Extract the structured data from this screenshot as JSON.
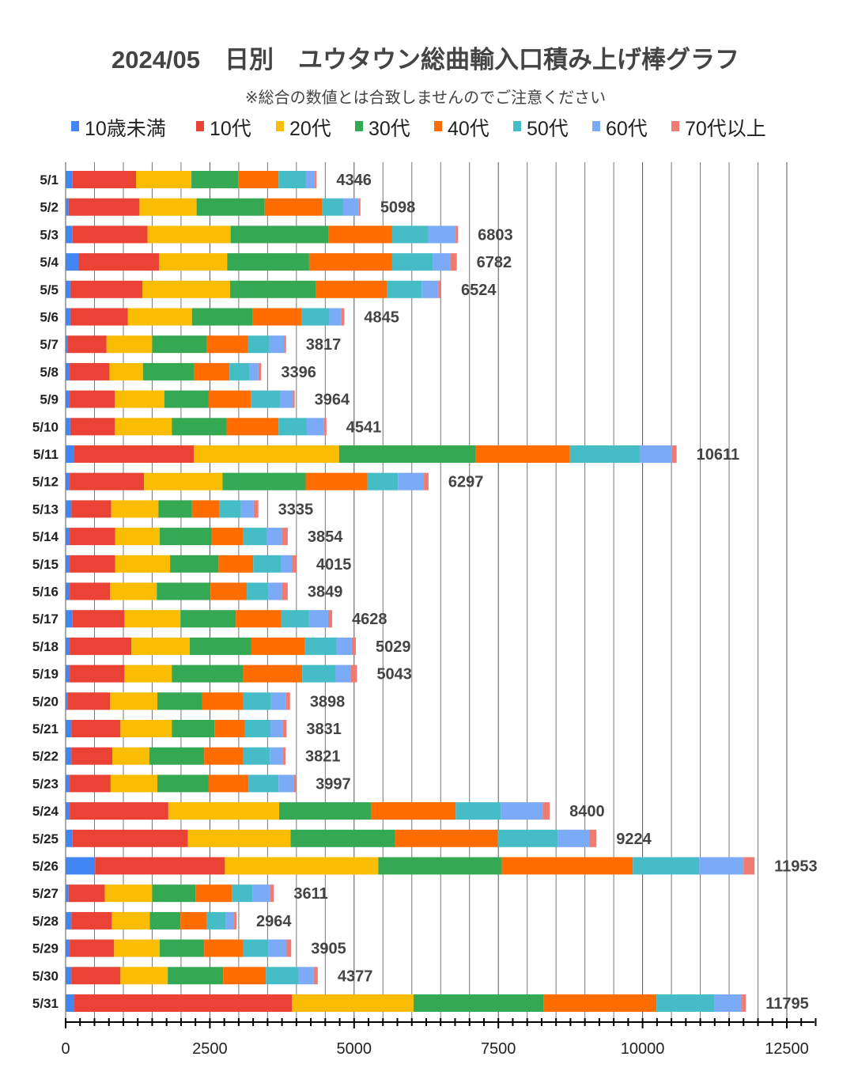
{
  "chart_data": {
    "type": "bar",
    "orientation": "horizontal",
    "stacked": true,
    "title": "2024/05　日別　ユウタウン総曲輸入口積み上げ棒グラフ",
    "subtitle": "※総合の数値とは合致しませんのでご注意ください",
    "xlabel": "",
    "ylabel": "",
    "xlim": [
      0,
      12500
    ],
    "xticks": [
      0,
      2500,
      5000,
      7500,
      10000,
      12500
    ],
    "grid": true,
    "legend_position": "top",
    "categories": [
      "5/1",
      "5/2",
      "5/3",
      "5/4",
      "5/5",
      "5/6",
      "5/7",
      "5/8",
      "5/9",
      "5/10",
      "5/11",
      "5/12",
      "5/13",
      "5/14",
      "5/15",
      "5/16",
      "5/17",
      "5/18",
      "5/19",
      "5/20",
      "5/21",
      "5/22",
      "5/23",
      "5/24",
      "5/25",
      "5/26",
      "5/27",
      "5/28",
      "5/29",
      "5/30",
      "5/31"
    ],
    "totals": [
      4346,
      5098,
      6803,
      6782,
      6524,
      4845,
      3817,
      3396,
      3964,
      4541,
      10611,
      6297,
      3335,
      3854,
      4015,
      3849,
      4628,
      5029,
      5043,
      3898,
      3831,
      3821,
      3997,
      8400,
      9224,
      11953,
      3611,
      2964,
      3905,
      4377,
      11795
    ],
    "series": [
      {
        "name": "10歳未満",
        "color": "#4285f4",
        "values": [
          120,
          50,
          120,
          220,
          80,
          80,
          40,
          70,
          70,
          80,
          150,
          70,
          100,
          70,
          70,
          70,
          120,
          70,
          70,
          40,
          100,
          100,
          70,
          70,
          120,
          510,
          50,
          100,
          70,
          100,
          150
        ]
      },
      {
        "name": "10代",
        "color": "#ea4335",
        "values": [
          1100,
          1230,
          1300,
          1400,
          1250,
          1000,
          670,
          690,
          780,
          770,
          2070,
          1290,
          690,
          790,
          790,
          700,
          900,
          1070,
          950,
          730,
          850,
          710,
          710,
          1710,
          2000,
          2250,
          630,
          700,
          770,
          850,
          3770
        ]
      },
      {
        "name": "20代",
        "color": "#fbbc04",
        "values": [
          960,
          990,
          1440,
          1180,
          1520,
          1110,
          790,
          580,
          860,
          990,
          2520,
          1360,
          820,
          770,
          950,
          810,
          970,
          1010,
          820,
          820,
          890,
          640,
          810,
          1920,
          1780,
          2660,
          820,
          660,
          790,
          820,
          2110
        ]
      },
      {
        "name": "30代",
        "color": "#34a853",
        "values": [
          810,
          1180,
          1700,
          1420,
          1490,
          1050,
          950,
          880,
          770,
          950,
          2360,
          1440,
          580,
          900,
          840,
          930,
          960,
          1070,
          1230,
          780,
          740,
          950,
          890,
          1590,
          1810,
          2140,
          750,
          530,
          770,
          960,
          2250
        ]
      },
      {
        "name": "40代",
        "color": "#ff6d01",
        "values": [
          700,
          1000,
          1100,
          1440,
          1230,
          850,
          710,
          620,
          730,
          900,
          1640,
          1070,
          470,
          550,
          600,
          630,
          790,
          930,
          1030,
          700,
          530,
          670,
          690,
          1470,
          1780,
          2270,
          630,
          450,
          670,
          740,
          1960
        ]
      },
      {
        "name": "50代",
        "color": "#46bdc6",
        "values": [
          470,
          360,
          630,
          710,
          600,
          480,
          370,
          340,
          510,
          490,
          1210,
          530,
          380,
          410,
          490,
          380,
          480,
          550,
          580,
          490,
          440,
          470,
          520,
          780,
          1040,
          1150,
          360,
          340,
          440,
          560,
          1010
        ]
      },
      {
        "name": "60代",
        "color": "#7baaf7",
        "values": [
          160,
          270,
          470,
          300,
          290,
          210,
          260,
          160,
          220,
          300,
          560,
          450,
          220,
          260,
          180,
          230,
          330,
          260,
          260,
          260,
          210,
          220,
          270,
          730,
          550,
          770,
          300,
          140,
          320,
          270,
          470
        ]
      },
      {
        "name": "70代以上",
        "color": "#f07b72",
        "values": [
          30,
          30,
          40,
          110,
          50,
          50,
          30,
          50,
          30,
          40,
          80,
          80,
          80,
          100,
          80,
          100,
          70,
          70,
          110,
          70,
          70,
          50,
          30,
          120,
          120,
          190,
          70,
          40,
          80,
          70,
          70
        ]
      }
    ]
  }
}
